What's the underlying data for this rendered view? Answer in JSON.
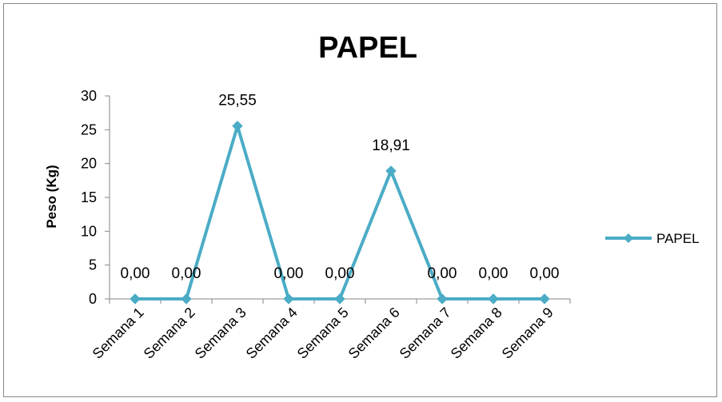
{
  "chart_data": {
    "type": "line",
    "title": "PAPEL",
    "ylabel": "Peso (Kg)",
    "xlabel": "",
    "categories": [
      "Semana 1",
      "Semana 2",
      "Semana 3",
      "Semana 4",
      "Semana 5",
      "Semana 6",
      "Semana 7",
      "Semana 8",
      "Semana 9"
    ],
    "series": [
      {
        "name": "PAPEL",
        "values": [
          0,
          0,
          25.55,
          0,
          0,
          18.91,
          0,
          0,
          0
        ],
        "labels": [
          "0,00",
          "0,00",
          "25,55",
          "0,00",
          "0,00",
          "18,91",
          "0,00",
          "0,00",
          "0,00"
        ],
        "color": "#4BACC6"
      }
    ],
    "ylim": [
      0,
      30
    ],
    "yticks": [
      0,
      5,
      10,
      15,
      20,
      25,
      30
    ],
    "grid": false,
    "legend": "right",
    "marker": "diamond"
  }
}
